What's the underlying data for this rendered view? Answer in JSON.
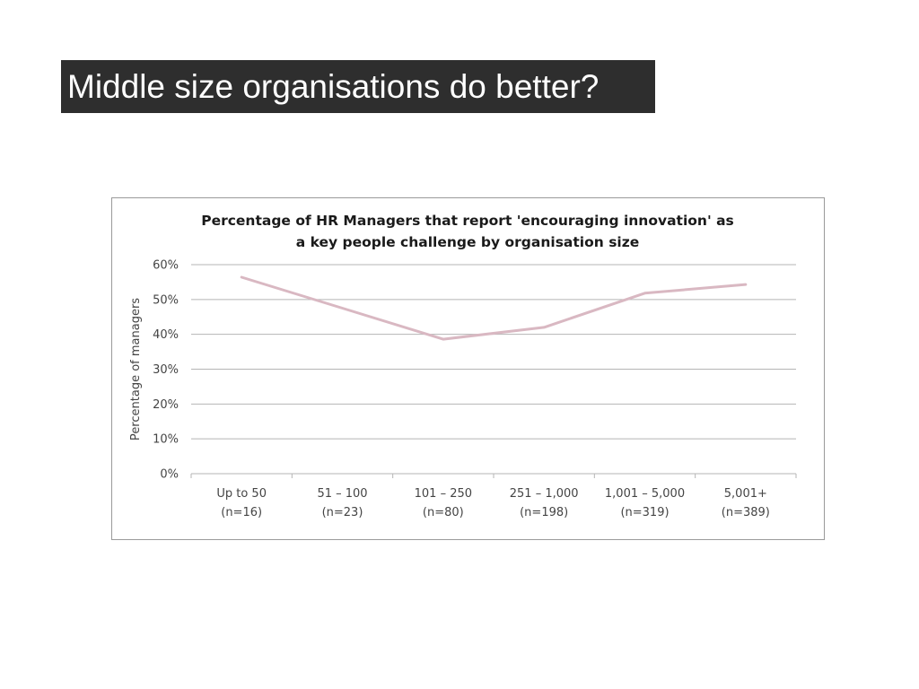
{
  "slide": {
    "title": "Middle size organisations do better?"
  },
  "colors": {
    "title_bg": "#2e2e2e",
    "title_text": "#ffffff",
    "line": "#d9b8c2",
    "grid": "#b5b5b5"
  },
  "chart_data": {
    "type": "line",
    "title_lines": [
      "Percentage of HR Managers that report 'encouraging innovation' as",
      "a key people challenge by organisation size"
    ],
    "ylabel": "Percentage of managers",
    "xlabel": "",
    "ylim": [
      0,
      60
    ],
    "yticks": [
      "0%",
      "10%",
      "20%",
      "30%",
      "40%",
      "50%",
      "60%"
    ],
    "grid": true,
    "legend": "none",
    "categories": [
      [
        "Up to 50",
        "(n=16)"
      ],
      [
        "51 – 100",
        "(n=23)"
      ],
      [
        "101 – 250",
        "(n=80)"
      ],
      [
        "251 – 1,000",
        "(n=198)"
      ],
      [
        "1,001 – 5,000",
        "(n=319)"
      ],
      [
        "5,001+",
        "(n=389)"
      ]
    ],
    "series": [
      {
        "values": [
          56.4,
          47.5,
          38.6,
          42.0,
          51.8,
          54.3
        ]
      }
    ]
  }
}
